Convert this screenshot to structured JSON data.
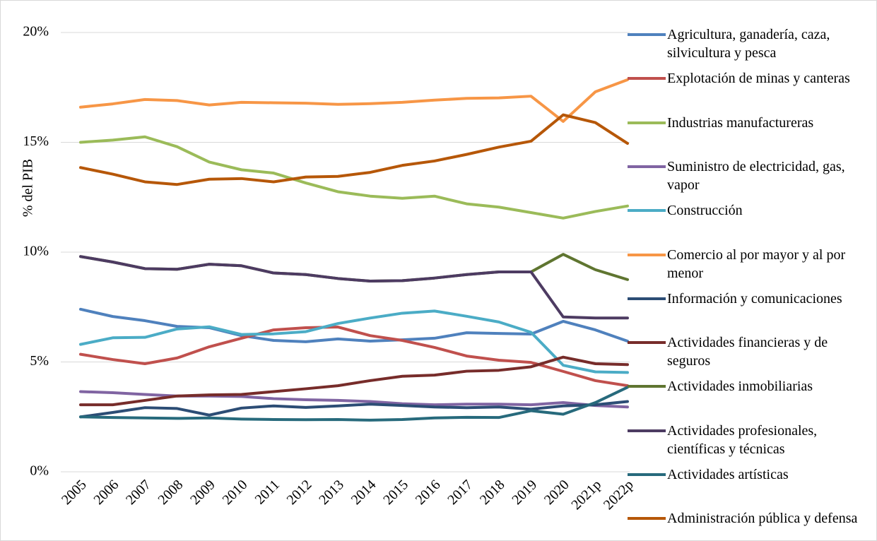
{
  "chart_data": {
    "type": "line",
    "y_label": "% del PIB",
    "categories": [
      "2005",
      "2006",
      "2007",
      "2008",
      "2009",
      "2010",
      "2011",
      "2012",
      "2013",
      "2014",
      "2015",
      "2016",
      "2017",
      "2018",
      "2019",
      "2020",
      "2021p",
      "2022p"
    ],
    "ylim": [
      0,
      20
    ],
    "yticks": [
      {
        "value": 0,
        "label": "0%"
      },
      {
        "value": 5,
        "label": "5%"
      },
      {
        "value": 10,
        "label": "10%"
      },
      {
        "value": 15,
        "label": "15%"
      },
      {
        "value": 20,
        "label": "20%"
      }
    ],
    "grid": true,
    "legend": "right",
    "series": [
      {
        "name": "Agricultura, ganadería, caza, silvicultura y pesca",
        "color": "#4f81bd",
        "values": [
          7.4,
          7.07,
          6.88,
          6.62,
          6.56,
          6.2,
          5.98,
          5.92,
          6.05,
          5.95,
          6.01,
          6.08,
          6.33,
          6.3,
          6.27,
          6.85,
          6.46,
          5.95
        ]
      },
      {
        "name": "Explotación de minas y canteras",
        "color": "#c0504d",
        "values": [
          5.35,
          5.11,
          4.92,
          5.18,
          5.69,
          6.08,
          6.46,
          6.56,
          6.59,
          6.2,
          5.98,
          5.66,
          5.27,
          5.08,
          4.98,
          4.57,
          4.15,
          3.92
        ]
      },
      {
        "name": "Industrias manufactureras",
        "color": "#9bbb59",
        "values": [
          15.0,
          15.1,
          15.25,
          14.8,
          14.1,
          13.75,
          13.6,
          13.15,
          12.75,
          12.55,
          12.45,
          12.55,
          12.2,
          12.05,
          11.8,
          11.55,
          11.85,
          12.1
        ]
      },
      {
        "name": "Suministro de electricidad, gas, vapor",
        "color": "#8064a2",
        "values": [
          3.65,
          3.6,
          3.52,
          3.45,
          3.45,
          3.43,
          3.33,
          3.28,
          3.25,
          3.2,
          3.1,
          3.05,
          3.08,
          3.08,
          3.05,
          3.15,
          3.02,
          2.95
        ]
      },
      {
        "name": "Construcción",
        "color": "#4bacc6",
        "values": [
          5.8,
          6.1,
          6.12,
          6.5,
          6.6,
          6.25,
          6.28,
          6.38,
          6.75,
          7.0,
          7.22,
          7.32,
          7.08,
          6.82,
          6.35,
          4.85,
          4.55,
          4.52
        ]
      },
      {
        "name": "Comercio al por mayor y al por menor",
        "color": "#f79646",
        "values": [
          16.6,
          16.75,
          16.95,
          16.9,
          16.7,
          16.82,
          16.8,
          16.78,
          16.73,
          16.76,
          16.82,
          16.92,
          17.0,
          17.02,
          17.1,
          15.95,
          17.3,
          17.85
        ]
      },
      {
        "name": "Información y comunicaciones",
        "color": "#2c4d75",
        "values": [
          2.5,
          2.7,
          2.92,
          2.88,
          2.58,
          2.9,
          3.0,
          2.93,
          3.0,
          3.08,
          3.02,
          2.95,
          2.92,
          2.95,
          2.85,
          3.0,
          3.05,
          3.2
        ]
      },
      {
        "name": "Actividades financieras y de seguros",
        "color": "#772c2a",
        "values": [
          3.05,
          3.05,
          3.25,
          3.45,
          3.5,
          3.52,
          3.65,
          3.78,
          3.92,
          4.15,
          4.35,
          4.4,
          4.58,
          4.62,
          4.78,
          5.22,
          4.92,
          4.88
        ]
      },
      {
        "name": "Actividades inmobiliarias",
        "color": "#5f7530",
        "values": [
          9.8,
          9.55,
          9.25,
          9.22,
          9.45,
          9.38,
          9.05,
          8.98,
          8.8,
          8.68,
          8.7,
          8.82,
          8.98,
          9.1,
          9.1,
          9.9,
          9.2,
          8.75
        ]
      },
      {
        "name": "Actividades profesionales, científicas y técnicas",
        "color": "#4d3b62",
        "values": [
          9.8,
          9.55,
          9.25,
          9.22,
          9.45,
          9.38,
          9.05,
          8.98,
          8.8,
          8.68,
          8.7,
          8.82,
          8.98,
          9.1,
          9.1,
          7.05,
          7.0,
          7.0
        ]
      },
      {
        "name": "Actividades artísticas",
        "color": "#276a7c",
        "values": [
          2.5,
          2.47,
          2.45,
          2.43,
          2.45,
          2.4,
          2.38,
          2.37,
          2.38,
          2.35,
          2.38,
          2.45,
          2.48,
          2.47,
          2.78,
          2.62,
          3.15,
          3.85
        ]
      },
      {
        "name": "Administración pública y defensa",
        "color": "#b65708",
        "values": [
          13.85,
          13.55,
          13.2,
          13.08,
          13.32,
          13.35,
          13.2,
          13.42,
          13.45,
          13.63,
          13.95,
          14.15,
          14.45,
          14.78,
          15.05,
          16.25,
          15.9,
          14.95
        ]
      }
    ]
  }
}
